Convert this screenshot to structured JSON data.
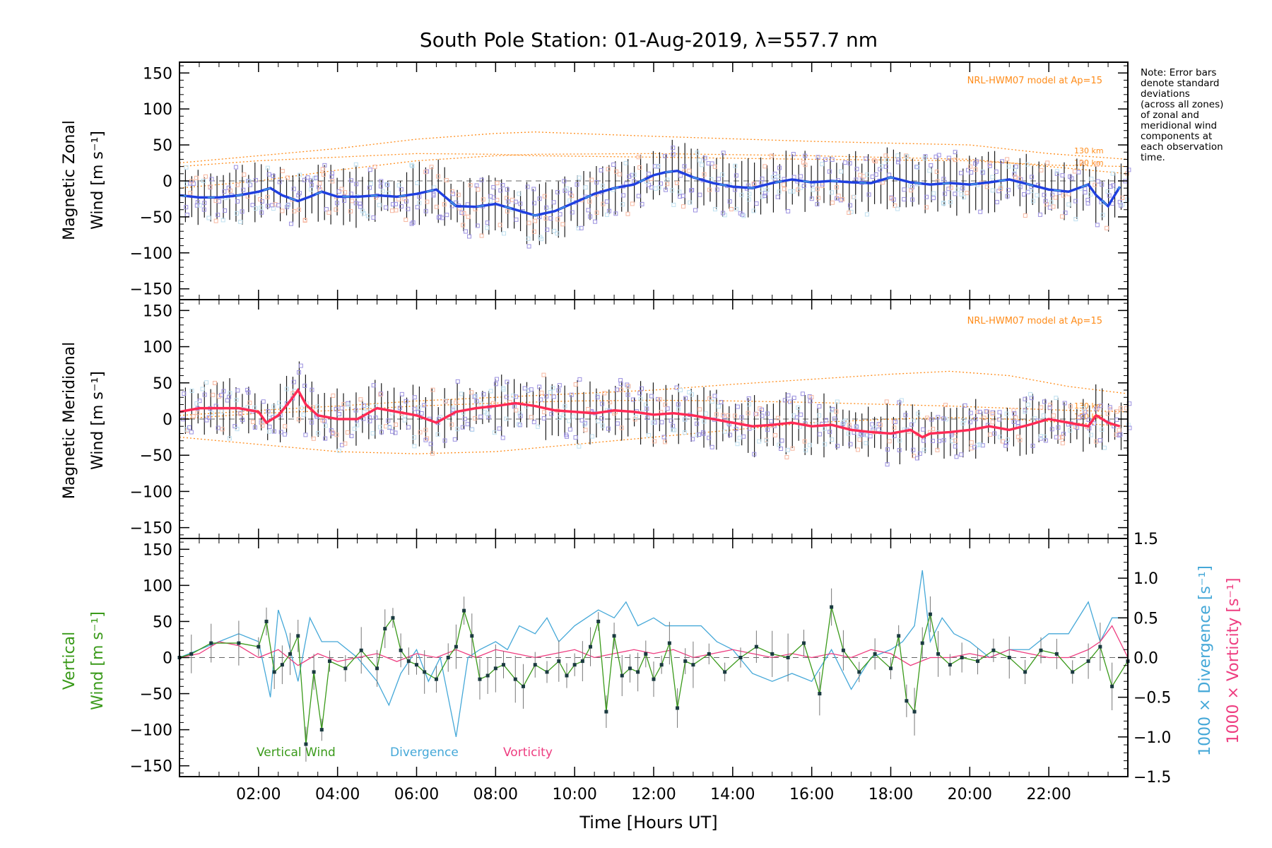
{
  "figure": {
    "title": "South Pole Station: 01-Aug-2019, λ=557.7 nm",
    "xlabel": "Time [Hours UT]",
    "note_lines": [
      "Note: Error bars",
      "denote standard",
      "deviations",
      "(across all zones)",
      "of zonal and",
      "meridional wind",
      "components at",
      "each observation",
      "time."
    ],
    "colors": {
      "zonal": "#1f3fe0",
      "zonal_light": "#49a6e0",
      "meridional": "#ff2a55",
      "vertical": "#3a9a1a",
      "divergence": "#45a8d8",
      "vorticity": "#ee3d80",
      "model": "#ff8c1a",
      "scatter": "#9b90e0",
      "error": "#000000"
    }
  },
  "chart_data": [
    {
      "type": "line",
      "panel": "zonal",
      "ylabel": [
        "Magnetic Zonal",
        "Wind [m s⁻¹]"
      ],
      "xlim": [
        0,
        24
      ],
      "ylim": [
        -165,
        165
      ],
      "xticks": [
        2,
        4,
        6,
        8,
        10,
        12,
        14,
        16,
        18,
        20,
        22
      ],
      "xtick_labels": [
        "02:00",
        "04:00",
        "06:00",
        "08:00",
        "10:00",
        "12:00",
        "14:00",
        "16:00",
        "18:00",
        "20:00",
        "22:00"
      ],
      "yticks": [
        -150,
        -100,
        -50,
        0,
        50,
        100,
        150
      ],
      "model_label": "NRL-HWM07 model at Ap=15",
      "model_level_labels": [
        "130 km",
        "120 km"
      ],
      "mean": {
        "x": [
          0,
          0.5,
          1,
          1.5,
          2,
          2.3,
          2.6,
          3,
          3.3,
          3.6,
          4,
          4.5,
          5,
          5.5,
          6,
          6.5,
          7,
          7.5,
          8,
          8.5,
          9,
          9.5,
          10,
          10.5,
          11,
          11.5,
          12,
          12.3,
          12.6,
          13,
          13.5,
          14,
          14.5,
          15,
          15.5,
          16,
          16.5,
          17,
          17.5,
          18,
          18.5,
          19,
          19.5,
          20,
          20.5,
          21,
          21.5,
          22,
          22.5,
          23,
          23.2,
          23.5,
          23.8
        ],
        "y": [
          -20,
          -23,
          -23,
          -20,
          -15,
          -10,
          -20,
          -28,
          -22,
          -15,
          -22,
          -22,
          -20,
          -22,
          -18,
          -12,
          -35,
          -36,
          -32,
          -40,
          -48,
          -42,
          -30,
          -18,
          -10,
          -5,
          8,
          12,
          14,
          5,
          -3,
          -8,
          -10,
          -3,
          2,
          -2,
          0,
          -2,
          -3,
          5,
          -2,
          -5,
          -3,
          -5,
          -2,
          2,
          -5,
          -12,
          -15,
          -5,
          -20,
          -35,
          -8
        ]
      },
      "model_curves": [
        {
          "x": [
            0,
            2,
            4,
            6,
            8,
            9,
            12,
            16,
            20,
            22,
            24
          ],
          "y": [
            20,
            28,
            33,
            38,
            37,
            35,
            33,
            30,
            28,
            22,
            20
          ]
        },
        {
          "x": [
            0,
            2,
            4,
            6,
            8,
            9,
            12,
            16,
            20,
            22,
            24
          ],
          "y": [
            25,
            35,
            45,
            58,
            66,
            68,
            62,
            55,
            50,
            38,
            30
          ]
        },
        {
          "x": [
            0,
            2,
            4,
            6,
            8,
            9,
            12,
            16,
            20,
            22,
            24
          ],
          "y": [
            -10,
            0,
            15,
            28,
            35,
            37,
            38,
            35,
            30,
            20,
            10
          ]
        }
      ]
    },
    {
      "type": "line",
      "panel": "meridional",
      "ylabel": [
        "Magnetic Meridional",
        "Wind [m s⁻¹]"
      ],
      "xlim": [
        0,
        24
      ],
      "ylim": [
        -165,
        165
      ],
      "xticks": [
        2,
        4,
        6,
        8,
        10,
        12,
        14,
        16,
        18,
        20,
        22
      ],
      "yticks": [
        -150,
        -100,
        -50,
        0,
        50,
        100,
        150
      ],
      "model_label": "NRL-HWM07 model at Ap=15",
      "model_level_labels": [
        "130 km",
        "120 km"
      ],
      "mean": {
        "x": [
          0,
          0.5,
          1,
          1.5,
          2,
          2.2,
          2.5,
          2.8,
          3,
          3.2,
          3.5,
          4,
          4.5,
          5,
          5.5,
          6,
          6.5,
          7,
          7.5,
          8,
          8.5,
          9,
          9.5,
          10,
          10.5,
          11,
          11.5,
          12,
          12.5,
          13,
          13.5,
          14,
          14.5,
          15,
          15.5,
          16,
          16.5,
          17,
          17.5,
          18,
          18.5,
          18.8,
          19,
          19.5,
          20,
          20.5,
          21,
          21.5,
          22,
          22.5,
          23,
          23.2,
          23.5,
          23.8
        ],
        "y": [
          10,
          15,
          15,
          15,
          10,
          -5,
          5,
          25,
          40,
          20,
          5,
          0,
          0,
          15,
          10,
          5,
          -5,
          10,
          15,
          18,
          22,
          18,
          12,
          10,
          8,
          12,
          10,
          6,
          8,
          5,
          0,
          -5,
          -10,
          -8,
          -5,
          -10,
          -8,
          -15,
          -18,
          -20,
          -15,
          -25,
          -20,
          -18,
          -15,
          -10,
          -15,
          -8,
          0,
          -5,
          -10,
          5,
          -5,
          -10
        ]
      },
      "model_curves": [
        {
          "x": [
            0,
            2,
            4,
            6,
            8,
            10,
            12,
            14,
            16,
            18,
            19.5,
            21,
            22.5,
            24
          ],
          "y": [
            -25,
            -35,
            -45,
            -48,
            -45,
            -35,
            -25,
            -15,
            -5,
            0,
            2,
            0,
            -5,
            -10
          ]
        },
        {
          "x": [
            0,
            2,
            4,
            6,
            8,
            10,
            12,
            14,
            16,
            18,
            19.5,
            21,
            22.5,
            24
          ],
          "y": [
            5,
            12,
            18,
            25,
            30,
            35,
            40,
            48,
            55,
            62,
            66,
            60,
            45,
            35
          ]
        },
        {
          "x": [
            0,
            2,
            4,
            6,
            8,
            10,
            12,
            14,
            16,
            18,
            19.5,
            21,
            22.5,
            24
          ],
          "y": [
            0,
            8,
            12,
            18,
            22,
            25,
            26,
            25,
            23,
            20,
            18,
            15,
            12,
            10
          ]
        }
      ]
    },
    {
      "type": "line",
      "panel": "vertical",
      "ylabel": [
        "Vertical",
        "Wind [m s⁻¹]"
      ],
      "ylabel_right_divergence": "1000 × Divergence [s⁻¹]",
      "ylabel_right_vorticity": "1000 × Vorticity [s⁻¹]",
      "xlim": [
        0,
        24
      ],
      "ylim": [
        -165,
        165
      ],
      "y2lim": [
        -1.5,
        1.5
      ],
      "xticks": [
        2,
        4,
        6,
        8,
        10,
        12,
        14,
        16,
        18,
        20,
        22
      ],
      "xtick_labels": [
        "02:00",
        "04:00",
        "06:00",
        "08:00",
        "10:00",
        "12:00",
        "14:00",
        "16:00",
        "18:00",
        "20:00",
        "22:00"
      ],
      "yticks": [
        -150,
        -100,
        -50,
        0,
        50,
        100,
        150
      ],
      "y2ticks": [
        -1.5,
        -1.0,
        -0.5,
        0.0,
        0.5,
        1.0,
        1.5
      ],
      "y2tick_labels": [
        "−1.5",
        "−1.0",
        "−0.5",
        "0.0",
        "0.5",
        "1.0",
        "1.5"
      ],
      "legend": [
        "Vertical Wind",
        "Divergence",
        "Vorticity"
      ],
      "series": [
        {
          "name": "Vertical Wind",
          "x": [
            0,
            0.3,
            0.8,
            1.5,
            2.0,
            2.2,
            2.4,
            2.6,
            2.8,
            3.0,
            3.2,
            3.4,
            3.6,
            3.8,
            4.2,
            4.6,
            5.0,
            5.2,
            5.4,
            5.6,
            5.8,
            6.0,
            6.2,
            6.5,
            6.8,
            7.0,
            7.2,
            7.4,
            7.6,
            7.8,
            8.0,
            8.2,
            8.5,
            8.7,
            9.0,
            9.3,
            9.6,
            9.8,
            10.0,
            10.2,
            10.4,
            10.6,
            10.8,
            11.0,
            11.2,
            11.4,
            11.6,
            11.8,
            12.0,
            12.2,
            12.4,
            12.6,
            12.8,
            13.0,
            13.4,
            13.8,
            14.2,
            14.6,
            15.0,
            15.4,
            15.8,
            16.2,
            16.5,
            16.8,
            17.2,
            17.6,
            18.0,
            18.2,
            18.4,
            18.6,
            18.8,
            19.0,
            19.2,
            19.5,
            19.8,
            20.2,
            20.6,
            21.0,
            21.4,
            21.8,
            22.2,
            22.6,
            23.0,
            23.3,
            23.6,
            24.0
          ],
          "y": [
            0,
            5,
            20,
            20,
            15,
            50,
            -20,
            -10,
            5,
            30,
            -120,
            -20,
            -100,
            -5,
            -15,
            10,
            -15,
            40,
            55,
            10,
            -5,
            -10,
            -20,
            -30,
            0,
            15,
            65,
            30,
            -30,
            -25,
            -15,
            -10,
            -30,
            -40,
            -10,
            -20,
            -5,
            -25,
            -10,
            -5,
            15,
            50,
            -75,
            30,
            -25,
            -15,
            -20,
            5,
            -30,
            -10,
            20,
            -70,
            -5,
            -10,
            5,
            -20,
            0,
            15,
            5,
            0,
            20,
            -50,
            70,
            10,
            -20,
            5,
            -15,
            30,
            -60,
            -75,
            20,
            60,
            5,
            -10,
            0,
            -5,
            10,
            0,
            -20,
            10,
            5,
            -20,
            -5,
            15,
            -40,
            -5
          ]
        },
        {
          "name": "Divergence",
          "x": [
            0,
            0.5,
            1.0,
            1.5,
            2.0,
            2.3,
            2.5,
            2.7,
            3.0,
            3.3,
            3.6,
            4.0,
            4.5,
            5.0,
            5.3,
            5.6,
            6.0,
            6.3,
            6.6,
            7.0,
            7.3,
            7.6,
            8.0,
            8.3,
            8.6,
            9.0,
            9.3,
            9.6,
            10.0,
            10.3,
            10.6,
            11.0,
            11.3,
            11.6,
            12.0,
            12.3,
            12.6,
            12.9,
            13.2,
            13.6,
            14.0,
            14.5,
            15.0,
            15.5,
            16.0,
            16.5,
            17.0,
            17.5,
            18.0,
            18.3,
            18.6,
            18.8,
            19.0,
            19.3,
            19.6,
            20.0,
            20.5,
            21.0,
            21.5,
            22.0,
            22.5,
            23.0,
            23.3,
            23.6,
            24.0
          ],
          "y": [
            0.0,
            0.1,
            0.2,
            0.3,
            0.2,
            -0.5,
            0.6,
            0.3,
            -0.3,
            0.5,
            0.2,
            0.2,
            0.0,
            -0.3,
            -0.6,
            -0.2,
            0.1,
            -0.3,
            0.0,
            -1.0,
            0.0,
            0.1,
            0.2,
            0.1,
            0.4,
            0.3,
            0.5,
            0.2,
            0.4,
            0.5,
            0.6,
            0.5,
            0.7,
            0.4,
            0.5,
            0.4,
            0.4,
            0.4,
            0.4,
            0.2,
            0.1,
            -0.2,
            -0.3,
            -0.2,
            -0.3,
            0.1,
            -0.4,
            0.0,
            0.1,
            0.2,
            0.4,
            1.1,
            0.2,
            0.5,
            0.3,
            0.2,
            0.0,
            0.1,
            0.1,
            0.3,
            0.3,
            0.7,
            0.2,
            0.5,
            0.5
          ]
        },
        {
          "name": "Vorticity",
          "x": [
            0,
            0.5,
            1.0,
            1.5,
            2.0,
            2.5,
            3.0,
            3.5,
            4.0,
            4.5,
            5.0,
            5.5,
            6.0,
            6.5,
            7.0,
            7.5,
            8.0,
            8.5,
            9.0,
            9.5,
            10.0,
            10.5,
            11.0,
            11.5,
            12.0,
            12.5,
            13.0,
            13.5,
            14.0,
            14.5,
            15.0,
            15.5,
            16.0,
            16.5,
            17.0,
            17.5,
            18.0,
            18.5,
            19.0,
            19.5,
            20.0,
            20.5,
            21.0,
            21.5,
            22.0,
            22.5,
            23.0,
            23.3,
            23.6,
            24.0
          ],
          "y": [
            0.0,
            0.05,
            0.2,
            0.15,
            0.0,
            0.1,
            -0.1,
            0.05,
            -0.05,
            0.0,
            0.05,
            -0.05,
            0.05,
            0.0,
            0.1,
            0.0,
            0.1,
            0.05,
            0.0,
            0.05,
            0.1,
            0.0,
            0.05,
            0.1,
            0.05,
            0.1,
            0.0,
            0.05,
            0.1,
            0.05,
            0.0,
            0.05,
            0.0,
            0.05,
            0.0,
            0.1,
            0.05,
            -0.1,
            0.0,
            0.0,
            0.05,
            0.0,
            0.1,
            0.05,
            0.0,
            0.0,
            0.1,
            0.2,
            0.4,
            0.0
          ]
        }
      ]
    }
  ]
}
